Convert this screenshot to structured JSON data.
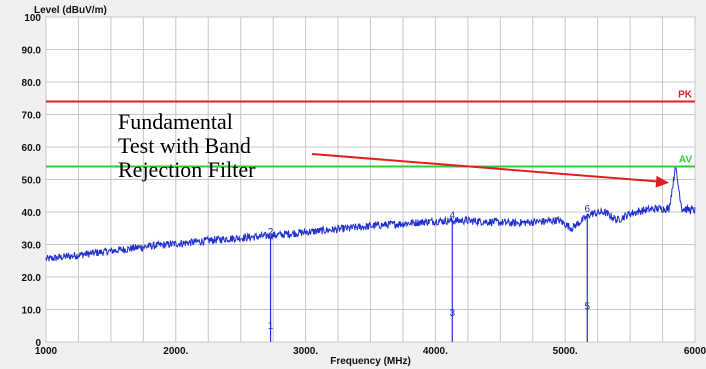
{
  "chart_data": {
    "type": "line",
    "title": "",
    "ylabel": "Level (dBuV/m)",
    "xlabel": "Frequency (MHz)",
    "xlim": [
      1000,
      6000
    ],
    "ylim": [
      0,
      100
    ],
    "grid": true,
    "x_ticks": [
      1000,
      2000,
      3000,
      4000,
      5000,
      6000
    ],
    "x_tick_labels": [
      "1000",
      "2000.",
      "3000.",
      "4000.",
      "5000.",
      "6000"
    ],
    "y_ticks": [
      0,
      10,
      20,
      30,
      40,
      50,
      60,
      70,
      80,
      90,
      100
    ],
    "y_tick_labels": [
      "0",
      "10.0",
      "20.0",
      "30.0",
      "40.0",
      "50.0",
      "60.0",
      "70.0",
      "80.0",
      "90.0",
      "100"
    ],
    "limits": [
      {
        "name": "PK",
        "value": 74,
        "color": "#e02020"
      },
      {
        "name": "AV",
        "value": 54,
        "color": "#33cc33"
      }
    ],
    "trace": {
      "color": "#1f2fd0",
      "x": [
        1000,
        1200,
        1400,
        1600,
        1800,
        2000,
        2200,
        2400,
        2600,
        2800,
        3000,
        3200,
        3400,
        3600,
        3800,
        4000,
        4200,
        4400,
        4600,
        4800,
        4950,
        5050,
        5100,
        5200,
        5300,
        5400,
        5500,
        5600,
        5700,
        5800,
        5850,
        5900,
        6000
      ],
      "y": [
        25.5,
        26.5,
        27.5,
        28.5,
        29.5,
        30.2,
        31,
        31.8,
        32.3,
        33,
        33.8,
        34.5,
        35.3,
        36,
        36.6,
        37.2,
        37.4,
        37,
        36.6,
        37,
        37.5,
        35,
        36.5,
        39.5,
        40,
        37.5,
        39.5,
        40.5,
        41,
        41,
        53.5,
        41,
        40.5
      ]
    },
    "markers": [
      {
        "label": "1",
        "x": 2730,
        "y": 4
      },
      {
        "label": "2",
        "x": 2730,
        "y": 33
      },
      {
        "label": "3",
        "x": 4130,
        "y": 8
      },
      {
        "label": "4",
        "x": 4130,
        "y": 38
      },
      {
        "label": "5",
        "x": 5170,
        "y": 10
      },
      {
        "label": "6",
        "x": 5170,
        "y": 40
      }
    ],
    "annotation": {
      "lines": [
        "Fundamental",
        "Test with Band",
        "Rejection Filter"
      ],
      "arrow_color": "#e02020",
      "arrow_target": {
        "x": 5800,
        "y": 49
      }
    },
    "colors": {
      "plot_bg": "#ffffff",
      "page_bg": "#f0f0f0",
      "grid": "#c8c8c8"
    }
  }
}
